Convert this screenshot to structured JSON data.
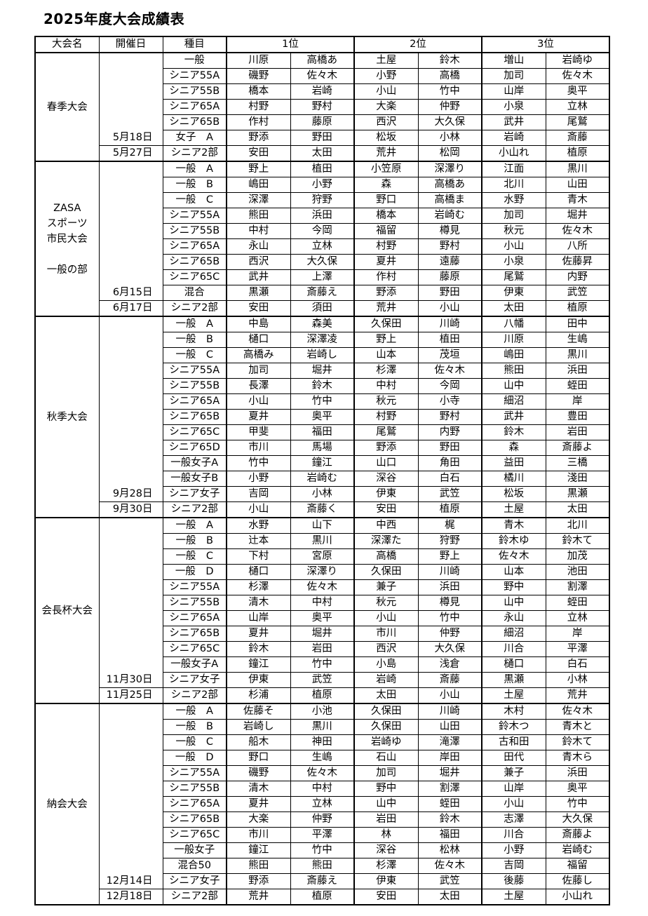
{
  "title": "2025年度大会成績表",
  "headers": {
    "tournament": "大会名",
    "date": "開催日",
    "event": "種目",
    "first": "1位",
    "second": "2位",
    "third": "3位"
  },
  "groups": [
    {
      "name_lines": [
        "春季大会"
      ],
      "dates": [
        "5月18日",
        "5月27日"
      ],
      "rows": [
        {
          "event": "一般",
          "names": [
            "川原",
            "高橋あ",
            "土屋",
            "鈴木",
            "増山",
            "岩崎ゆ"
          ]
        },
        {
          "event": "シニア55A",
          "names": [
            "磯野",
            "佐々木",
            "小野",
            "高橋",
            "加司",
            "佐々木"
          ]
        },
        {
          "event": "シニア55B",
          "names": [
            "橋本",
            "岩崎",
            "小山",
            "竹中",
            "山岸",
            "奥平"
          ]
        },
        {
          "event": "シニア65A",
          "names": [
            "村野",
            "野村",
            "大楽",
            "仲野",
            "小泉",
            "立林"
          ]
        },
        {
          "event": "シニア65B",
          "names": [
            "作村",
            "藤原",
            "西沢",
            "大久保",
            "武井",
            "尾鷲"
          ]
        },
        {
          "event": "女子　A",
          "names": [
            "野添",
            "野田",
            "松坂",
            "小林",
            "岩崎",
            "斎藤"
          ]
        },
        {
          "event": "シニア2部",
          "names": [
            "安田",
            "太田",
            "荒井",
            "松岡",
            "小山れ",
            "植原"
          ]
        }
      ]
    },
    {
      "name_lines": [
        "ZASA",
        "スポーツ",
        "市民大会",
        "",
        "一般の部"
      ],
      "dates": [
        "6月15日",
        "6月17日"
      ],
      "rows": [
        {
          "event": "一般　A",
          "names": [
            "野上",
            "植田",
            "小笠原",
            "深澤り",
            "江面",
            "黒川"
          ]
        },
        {
          "event": "一般　B",
          "names": [
            "嶋田",
            "小野",
            "森",
            "高橋あ",
            "北川",
            "山田"
          ]
        },
        {
          "event": "一般　C",
          "names": [
            "深澤",
            "狩野",
            "野口",
            "高橋ま",
            "水野",
            "青木"
          ]
        },
        {
          "event": "シニア55A",
          "names": [
            "熊田",
            "浜田",
            "橋本",
            "岩崎む",
            "加司",
            "堀井"
          ]
        },
        {
          "event": "シニア55B",
          "names": [
            "中村",
            "今岡",
            "福留",
            "樽見",
            "秋元",
            "佐々木"
          ]
        },
        {
          "event": "シニア65A",
          "names": [
            "永山",
            "立林",
            "村野",
            "野村",
            "小山",
            "八所"
          ]
        },
        {
          "event": "シニア65B",
          "names": [
            "西沢",
            "大久保",
            "夏井",
            "遠藤",
            "小泉",
            "佐藤昇"
          ]
        },
        {
          "event": "シニア65C",
          "names": [
            "武井",
            "上澤",
            "作村",
            "藤原",
            "尾鷲",
            "内野"
          ]
        },
        {
          "event": "混合",
          "names": [
            "黒瀬",
            "斎藤え",
            "野添",
            "野田",
            "伊東",
            "武笠"
          ]
        },
        {
          "event": "シニア2部",
          "names": [
            "安田",
            "須田",
            "荒井",
            "小山",
            "太田",
            "植原"
          ]
        }
      ]
    },
    {
      "name_lines": [
        "秋季大会"
      ],
      "dates": [
        "9月28日",
        "9月30日"
      ],
      "rows": [
        {
          "event": "一般　A",
          "names": [
            "中島",
            "森美",
            "久保田",
            "川崎",
            "八幡",
            "田中"
          ]
        },
        {
          "event": "一般　B",
          "names": [
            "樋口",
            "深澤凌",
            "野上",
            "植田",
            "川原",
            "生嶋"
          ]
        },
        {
          "event": "一般　C",
          "names": [
            "高橋み",
            "岩崎し",
            "山本",
            "茂垣",
            "嶋田",
            "黒川"
          ]
        },
        {
          "event": "シニア55A",
          "names": [
            "加司",
            "堀井",
            "杉澤",
            "佐々木",
            "熊田",
            "浜田"
          ]
        },
        {
          "event": "シニア55B",
          "names": [
            "長澤",
            "鈴木",
            "中村",
            "今岡",
            "山中",
            "蛭田"
          ]
        },
        {
          "event": "シニア65A",
          "names": [
            "小山",
            "竹中",
            "秋元",
            "小寺",
            "細沼",
            "岸"
          ]
        },
        {
          "event": "シニア65B",
          "names": [
            "夏井",
            "奥平",
            "村野",
            "野村",
            "武井",
            "豊田"
          ]
        },
        {
          "event": "シニア65C",
          "names": [
            "甲斐",
            "福田",
            "尾鷲",
            "内野",
            "鈴木",
            "岩田"
          ]
        },
        {
          "event": "シニア65D",
          "names": [
            "市川",
            "馬場",
            "野添",
            "野田",
            "森",
            "斎藤よ"
          ]
        },
        {
          "event": "一般女子A",
          "names": [
            "竹中",
            "鐘江",
            "山口",
            "角田",
            "益田",
            "三橋"
          ]
        },
        {
          "event": "一般女子B",
          "names": [
            "小野",
            "岩崎む",
            "深谷",
            "白石",
            "橘川",
            "淺田"
          ]
        },
        {
          "event": "シニア女子",
          "names": [
            "吉岡",
            "小林",
            "伊東",
            "武笠",
            "松坂",
            "黒瀬"
          ]
        },
        {
          "event": "シニア2部",
          "names": [
            "小山",
            "斎藤く",
            "安田",
            "植原",
            "土屋",
            "太田"
          ]
        }
      ]
    },
    {
      "name_lines": [
        "会長杯大会"
      ],
      "dates": [
        "11月30日",
        "11月25日"
      ],
      "rows": [
        {
          "event": "一般　A",
          "names": [
            "水野",
            "山下",
            "中西",
            "梶",
            "青木",
            "北川"
          ]
        },
        {
          "event": "一般　B",
          "names": [
            "辻本",
            "黒川",
            "深澤た",
            "狩野",
            "鈴木ゆ",
            "鈴木て"
          ]
        },
        {
          "event": "一般　C",
          "names": [
            "下村",
            "宮原",
            "高橋",
            "野上",
            "佐々木",
            "加茂"
          ]
        },
        {
          "event": "一般　D",
          "names": [
            "樋口",
            "深澤り",
            "久保田",
            "川崎",
            "山本",
            "池田"
          ]
        },
        {
          "event": "シニア55A",
          "names": [
            "杉澤",
            "佐々木",
            "兼子",
            "浜田",
            "野中",
            "割澤"
          ]
        },
        {
          "event": "シニア55B",
          "names": [
            "清木",
            "中村",
            "秋元",
            "樽見",
            "山中",
            "蛭田"
          ]
        },
        {
          "event": "シニア65A",
          "names": [
            "山岸",
            "奥平",
            "小山",
            "竹中",
            "永山",
            "立林"
          ]
        },
        {
          "event": "シニア65B",
          "names": [
            "夏井",
            "堀井",
            "市川",
            "仲野",
            "細沼",
            "岸"
          ]
        },
        {
          "event": "シニア65C",
          "names": [
            "鈴木",
            "岩田",
            "西沢",
            "大久保",
            "川合",
            "平澤"
          ]
        },
        {
          "event": "一般女子A",
          "names": [
            "鐘江",
            "竹中",
            "小島",
            "浅倉",
            "樋口",
            "白石"
          ]
        },
        {
          "event": "シニア女子",
          "names": [
            "伊東",
            "武笠",
            "岩崎",
            "斎藤",
            "黒瀬",
            "小林"
          ]
        },
        {
          "event": "シニア2部",
          "names": [
            "杉浦",
            "植原",
            "太田",
            "小山",
            "土屋",
            "荒井"
          ]
        }
      ]
    },
    {
      "name_lines": [
        "納会大会"
      ],
      "dates": [
        "12月14日",
        "12月18日"
      ],
      "rows": [
        {
          "event": "一般　A",
          "names": [
            "佐藤そ",
            "小池",
            "久保田",
            "川崎",
            "木村",
            "佐々木"
          ]
        },
        {
          "event": "一般　B",
          "names": [
            "岩崎し",
            "黒川",
            "久保田",
            "山田",
            "鈴木つ",
            "青木と"
          ]
        },
        {
          "event": "一般　C",
          "names": [
            "船木",
            "神田",
            "岩崎ゆ",
            "滝澤",
            "古和田",
            "鈴木て"
          ]
        },
        {
          "event": "一般　D",
          "names": [
            "野口",
            "生嶋",
            "石山",
            "岸田",
            "田代",
            "青木ら"
          ]
        },
        {
          "event": "シニア55A",
          "names": [
            "磯野",
            "佐々木",
            "加司",
            "堀井",
            "兼子",
            "浜田"
          ]
        },
        {
          "event": "シニア55B",
          "names": [
            "清木",
            "中村",
            "野中",
            "割澤",
            "山岸",
            "奥平"
          ]
        },
        {
          "event": "シニア65A",
          "names": [
            "夏井",
            "立林",
            "山中",
            "蛭田",
            "小山",
            "竹中"
          ]
        },
        {
          "event": "シニア65B",
          "names": [
            "大楽",
            "仲野",
            "岩田",
            "鈴木",
            "志澤",
            "大久保"
          ]
        },
        {
          "event": "シニア65C",
          "names": [
            "市川",
            "平澤",
            "林",
            "福田",
            "川合",
            "斎藤よ"
          ]
        },
        {
          "event": "一般女子",
          "names": [
            "鐘江",
            "竹中",
            "深谷",
            "松林",
            "小野",
            "岩崎む"
          ]
        },
        {
          "event": "混合50",
          "names": [
            "熊田",
            "熊田",
            "杉澤",
            "佐々木",
            "吉岡",
            "福留"
          ]
        },
        {
          "event": "シニア女子",
          "names": [
            "野添",
            "斎藤え",
            "伊東",
            "武笠",
            "後藤",
            "佐藤し"
          ]
        },
        {
          "event": "シニア2部",
          "names": [
            "荒井",
            "植原",
            "安田",
            "太田",
            "土屋",
            "小山れ"
          ]
        }
      ]
    }
  ]
}
